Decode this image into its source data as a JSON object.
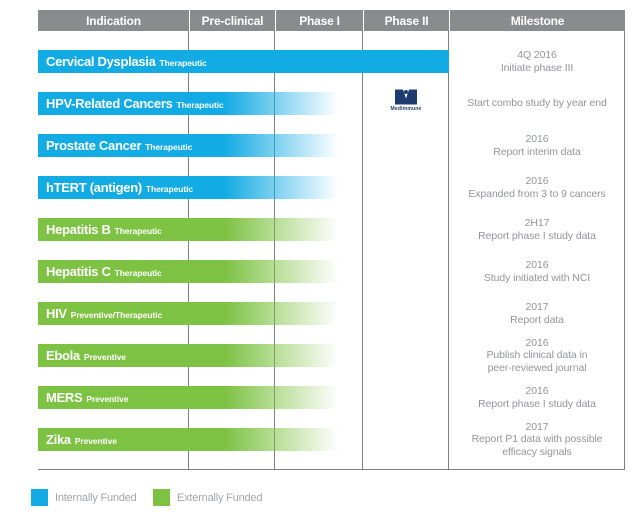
{
  "header": {
    "columns": [
      "Indication",
      "Pre-clinical",
      "Phase I",
      "Phase II",
      "Milestone"
    ]
  },
  "rows": [
    {
      "name": "Cervical Dysplasia",
      "type": "Therapeutic",
      "funding": "internal",
      "bar_end": "Phase II",
      "milestone": [
        "4Q 2016",
        "Initiate phase III"
      ]
    },
    {
      "name": "HPV-Related Cancers",
      "type": "Therapeutic",
      "funding": "internal",
      "bar_end": "Phase I (partial)",
      "partner": "MedImmune",
      "milestone": [
        "Start combo study by year end"
      ]
    },
    {
      "name": "Prostate Cancer",
      "type": "Therapeutic",
      "funding": "internal",
      "bar_end": "Phase I (partial)",
      "milestone": [
        "2016",
        "Report interim data"
      ]
    },
    {
      "name": "hTERT (antigen)",
      "type": "Therapeutic",
      "funding": "internal",
      "bar_end": "Phase I (partial)",
      "milestone": [
        "2016",
        "Expanded from 3 to 9 cancers"
      ]
    },
    {
      "name": "Hepatitis B",
      "type": "Therapeutic",
      "funding": "external",
      "bar_end": "Phase I (partial)",
      "milestone": [
        "2H17",
        "Report phase I study data"
      ]
    },
    {
      "name": "Hepatitis C",
      "type": "Therapeutic",
      "funding": "external",
      "bar_end": "Phase I (partial)",
      "milestone": [
        "2016",
        "Study initiated with NCI"
      ]
    },
    {
      "name": "HIV",
      "type": "Preventive/Therapeutic",
      "funding": "external",
      "bar_end": "Phase I (partial)",
      "milestone": [
        "2017",
        "Report data"
      ]
    },
    {
      "name": "Ebola",
      "type": "Preventive",
      "funding": "external",
      "bar_end": "Phase I (partial)",
      "milestone": [
        "2016",
        "Publish clinical data in",
        "peer-reviewed journal"
      ]
    },
    {
      "name": "MERS",
      "type": "Preventive",
      "funding": "external",
      "bar_end": "Phase I (partial)",
      "milestone": [
        "2016",
        "Report phase I study data"
      ]
    },
    {
      "name": "Zika",
      "type": "Preventive",
      "funding": "external",
      "bar_end": "Phase I (partial)",
      "milestone": [
        "2017",
        "Report P1 data with possible",
        "efficacy signals"
      ]
    }
  ],
  "partner": {
    "name": "MedImmune"
  },
  "legend": [
    {
      "label": "Internally Funded",
      "color": "#12abe3"
    },
    {
      "label": "Externally Funded",
      "color": "#7dc242"
    }
  ],
  "colors": {
    "internal": "#12abe3",
    "external": "#7dc242",
    "header_bg": "#8a8b8d",
    "grid_line": "#7e7f81",
    "milestone_text": "#939598",
    "legend_text": "#a3a5a8",
    "partner_navy": "#1d3b6d"
  },
  "chart_data": {
    "type": "table",
    "title": "Clinical development pipeline by indication and phase",
    "columns": [
      "Indication",
      "Pre-clinical",
      "Phase I",
      "Phase II",
      "Milestone"
    ],
    "phases": [
      "Pre-clinical",
      "Phase I",
      "Phase II"
    ],
    "legend_position": "bottom-left",
    "rows": [
      {
        "indication": "Cervical Dysplasia (Therapeutic)",
        "funding": "Internally Funded",
        "progress": "through Phase II",
        "milestone": "4Q 2016 – Initiate phase III"
      },
      {
        "indication": "HPV-Related Cancers (Therapeutic)",
        "funding": "Internally Funded",
        "progress": "into Phase I (partner: MedImmune)",
        "milestone": "Start combo study by year end"
      },
      {
        "indication": "Prostate Cancer (Therapeutic)",
        "funding": "Internally Funded",
        "progress": "into Phase I",
        "milestone": "2016 – Report interim data"
      },
      {
        "indication": "hTERT (antigen) (Therapeutic)",
        "funding": "Internally Funded",
        "progress": "into Phase I",
        "milestone": "2016 – Expanded from 3 to 9 cancers"
      },
      {
        "indication": "Hepatitis B (Therapeutic)",
        "funding": "Externally Funded",
        "progress": "into Phase I",
        "milestone": "2H17 – Report phase I study data"
      },
      {
        "indication": "Hepatitis C (Therapeutic)",
        "funding": "Externally Funded",
        "progress": "into Phase I",
        "milestone": "2016 – Study initiated with NCI"
      },
      {
        "indication": "HIV (Preventive/Therapeutic)",
        "funding": "Externally Funded",
        "progress": "into Phase I",
        "milestone": "2017 – Report data"
      },
      {
        "indication": "Ebola (Preventive)",
        "funding": "Externally Funded",
        "progress": "into Phase I",
        "milestone": "2016 – Publish clinical data in peer-reviewed journal"
      },
      {
        "indication": "MERS (Preventive)",
        "funding": "Externally Funded",
        "progress": "into Phase I",
        "milestone": "2016 – Report phase I study data"
      },
      {
        "indication": "Zika (Preventive)",
        "funding": "Externally Funded",
        "progress": "into Phase I",
        "milestone": "2017 – Report P1 data with possible efficacy signals"
      }
    ]
  }
}
